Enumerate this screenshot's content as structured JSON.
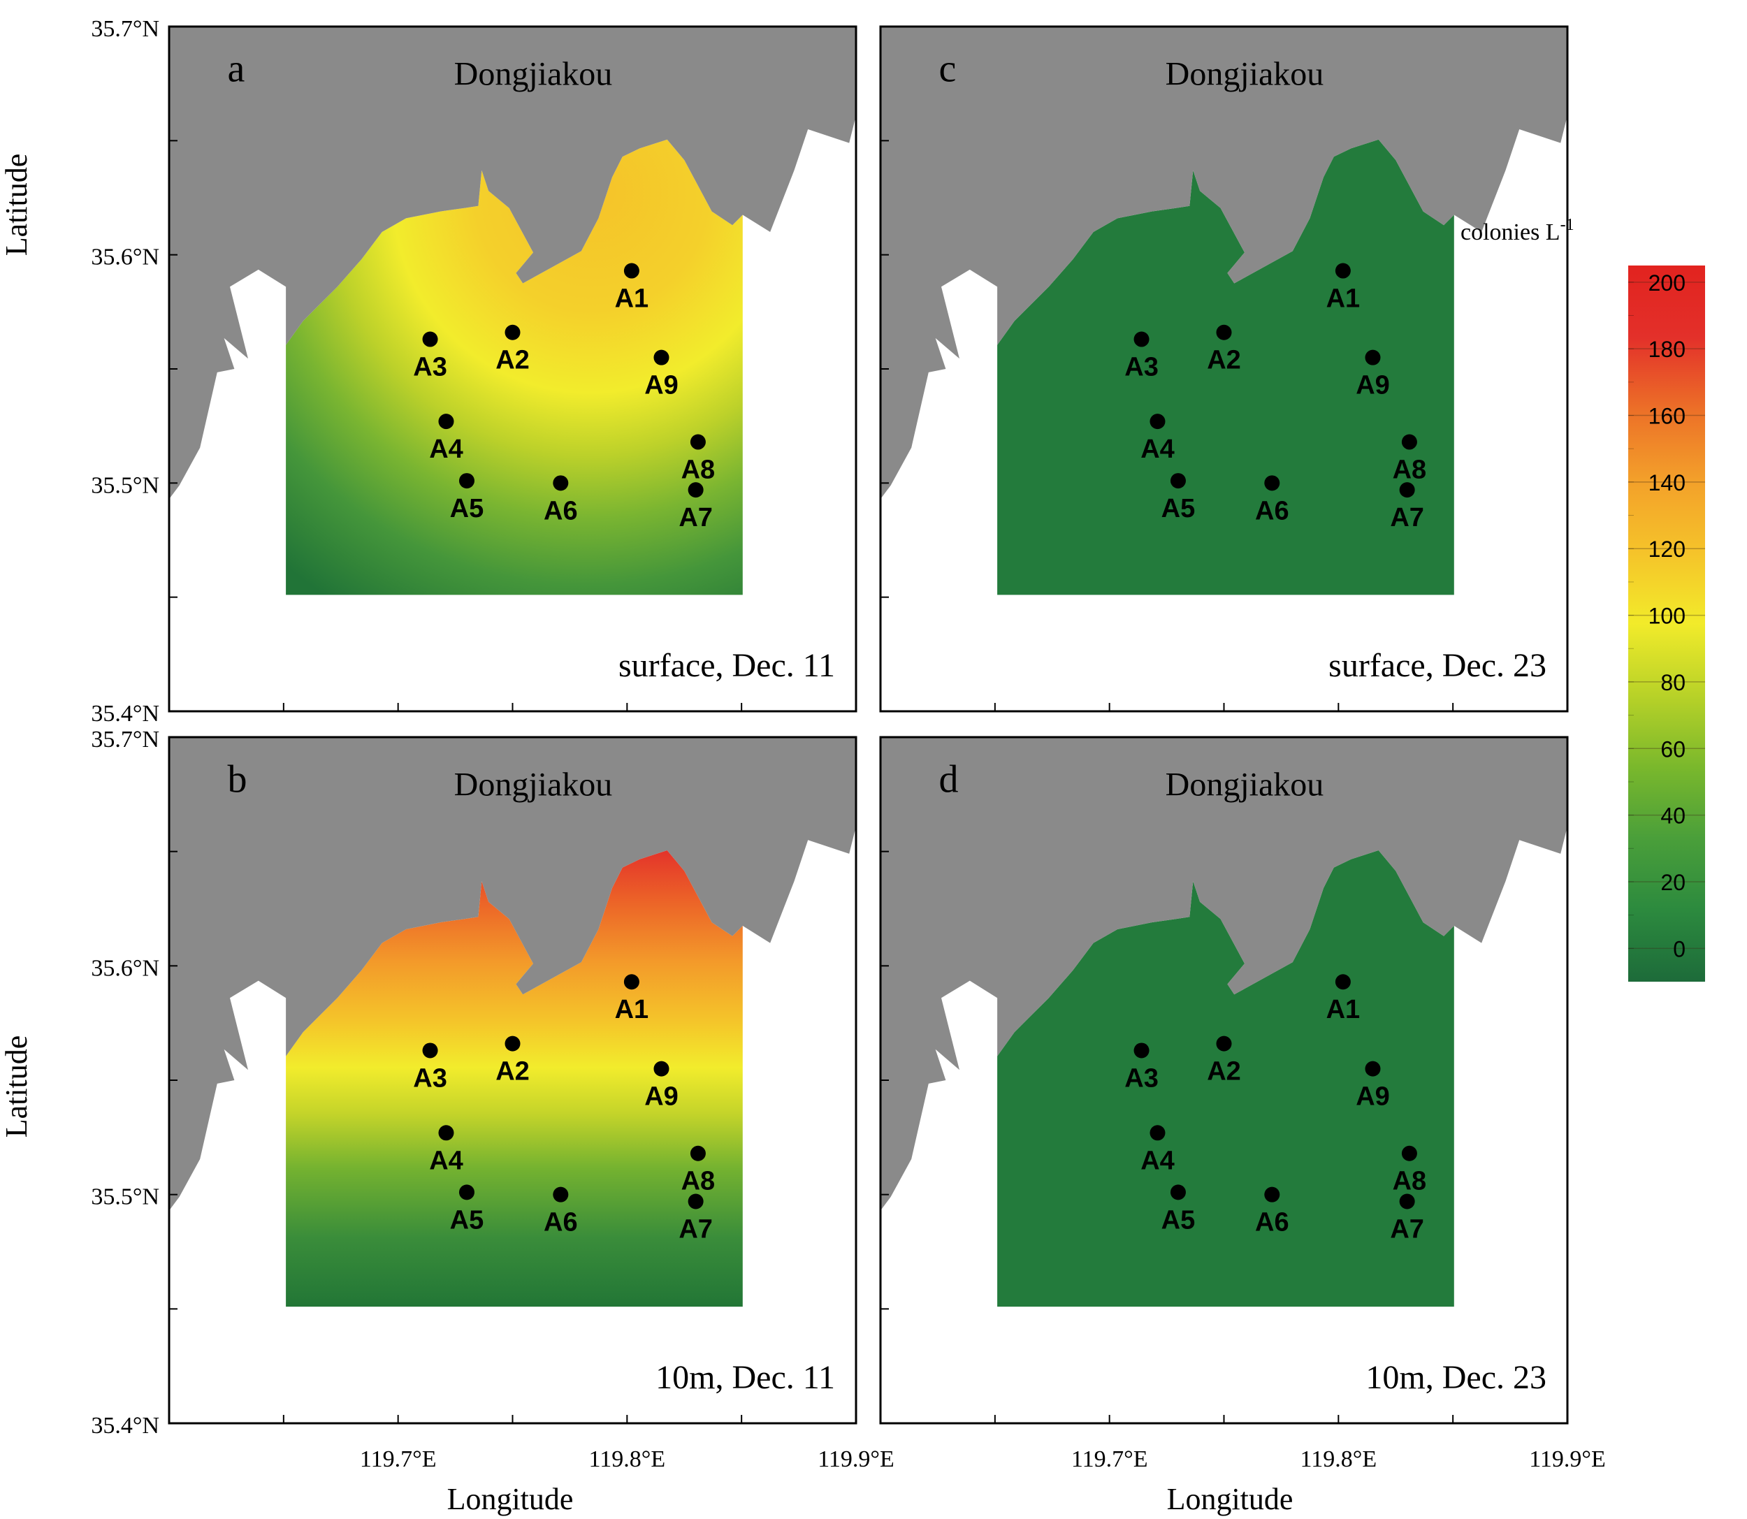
{
  "figure": {
    "y_axis_title": "Latitude",
    "x_axis_title": "Longitude",
    "lat_ticks": [
      "35.4°N",
      "35.5°N",
      "35.6°N",
      "35.7°N"
    ],
    "lon_ticks": [
      "119.7°E",
      "119.8°E",
      "119.9°E"
    ],
    "place_name": "Dongjiakou"
  },
  "panels": [
    {
      "letter": "a",
      "caption": "surface, Dec. 11",
      "field": "a"
    },
    {
      "letter": "c",
      "caption": "surface, Dec. 23",
      "field": "flat"
    },
    {
      "letter": "b",
      "caption": "10m, Dec. 11",
      "field": "b"
    },
    {
      "letter": "d",
      "caption": "10m, Dec. 23",
      "field": "flat"
    }
  ],
  "stations": [
    {
      "id": "A1",
      "lon": 119.802,
      "lat": 35.593
    },
    {
      "id": "A2",
      "lon": 119.75,
      "lat": 35.566
    },
    {
      "id": "A3",
      "lon": 119.714,
      "lat": 35.563
    },
    {
      "id": "A4",
      "lon": 119.721,
      "lat": 35.527
    },
    {
      "id": "A5",
      "lon": 119.73,
      "lat": 35.501
    },
    {
      "id": "A6",
      "lon": 119.771,
      "lat": 35.5
    },
    {
      "id": "A7",
      "lon": 119.83,
      "lat": 35.497
    },
    {
      "id": "A8",
      "lon": 119.831,
      "lat": 35.518
    },
    {
      "id": "A9",
      "lon": 119.815,
      "lat": 35.555
    }
  ],
  "colorbar": {
    "title": "colonies L",
    "title_superscript": "-1",
    "ticks": [
      "0",
      "20",
      "40",
      "60",
      "80",
      "100",
      "120",
      "140",
      "160",
      "180",
      "200"
    ],
    "min": -10,
    "max": 205,
    "colors": [
      "#1d6b3a",
      "#2c8a3e",
      "#4a9f3a",
      "#7ab82c",
      "#b8d228",
      "#f2eb2a",
      "#f5c32a",
      "#f3a02a",
      "#ec6f28",
      "#e3302a",
      "#e2231f"
    ]
  },
  "colors": {
    "land": "#8a8a8a",
    "flat_field": "#237b3c",
    "station": "#000000"
  }
}
